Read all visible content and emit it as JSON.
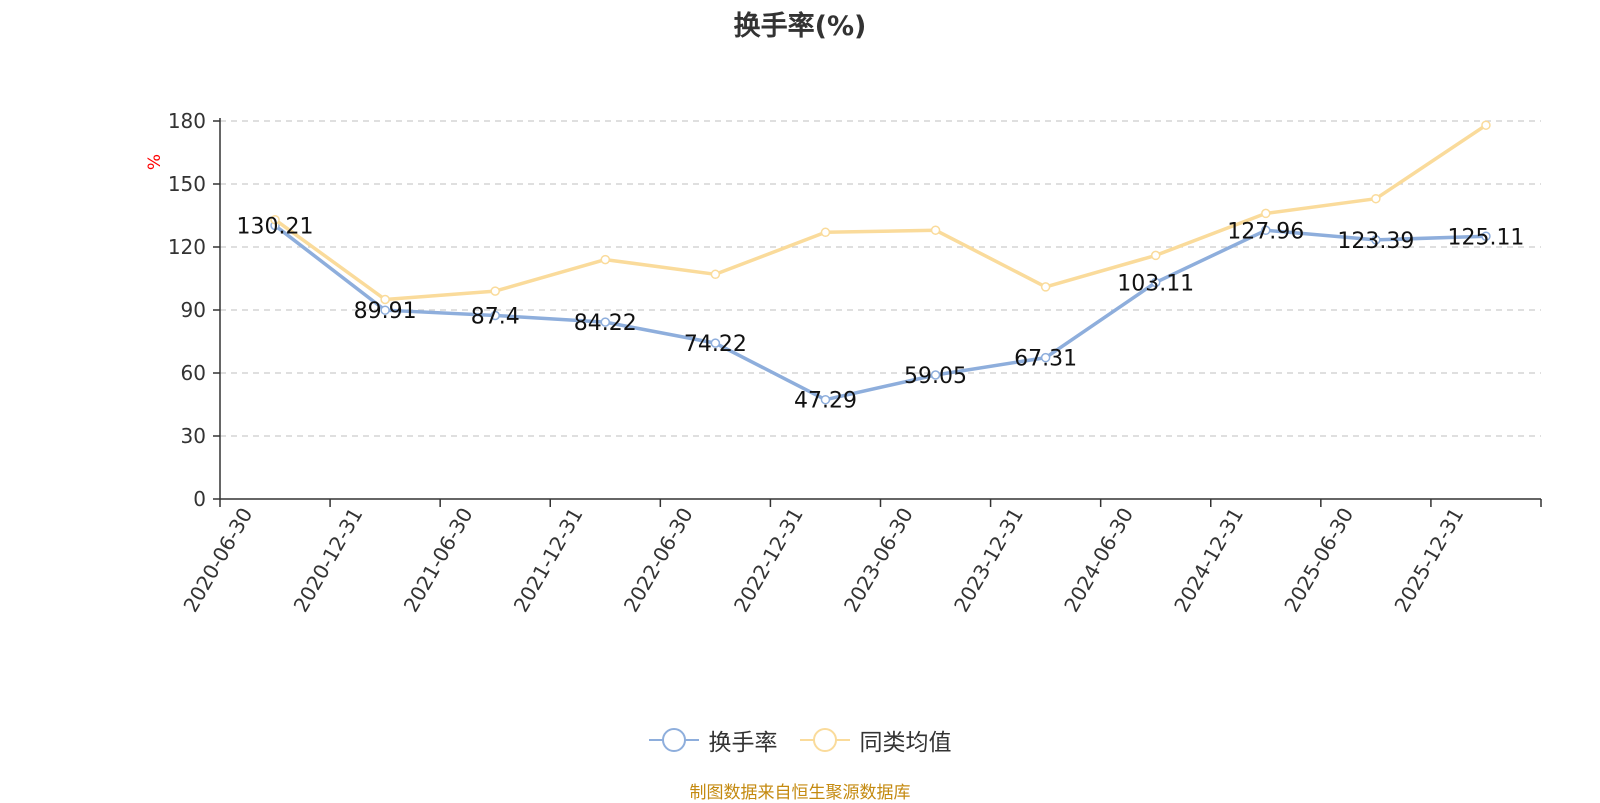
{
  "chart_data": {
    "type": "line",
    "title": "换手率(%)",
    "ylabel": "%",
    "xlabel": "",
    "ylim": [
      0,
      180
    ],
    "yticks": [
      0,
      30,
      60,
      90,
      120,
      150,
      180
    ],
    "grid": true,
    "legend_position": "bottom-center",
    "categories": [
      "2020-06-30",
      "2020-12-31",
      "2021-06-30",
      "2021-12-31",
      "2022-06-30",
      "2022-12-31",
      "2023-06-30",
      "2023-12-31",
      "2024-06-30",
      "2024-12-31",
      "2025-06-30",
      "2025-12-31"
    ],
    "series": [
      {
        "name": "换手率",
        "color": "#8eaedc",
        "values": [
          130.21,
          89.91,
          87.4,
          84.22,
          74.22,
          47.29,
          59.05,
          67.31,
          103.11,
          127.96,
          123.39,
          125.11
        ],
        "labels": [
          "130.21",
          "89.91",
          "87.4",
          "84.22",
          "74.22",
          "47.29",
          "59.05",
          "67.31",
          "103.11",
          "127.96",
          "123.39",
          "125.11"
        ]
      },
      {
        "name": "同类均值",
        "color": "#fadb9b",
        "values": [
          133,
          95,
          99,
          114,
          107,
          127,
          128,
          101,
          116,
          136,
          143,
          178
        ]
      }
    ],
    "source": "制图数据来自恒生聚源数据库"
  },
  "colors": {
    "axis": "#333333",
    "grid": "#cccccc",
    "ylabel": "#ff0000",
    "source": "#c48a10"
  }
}
